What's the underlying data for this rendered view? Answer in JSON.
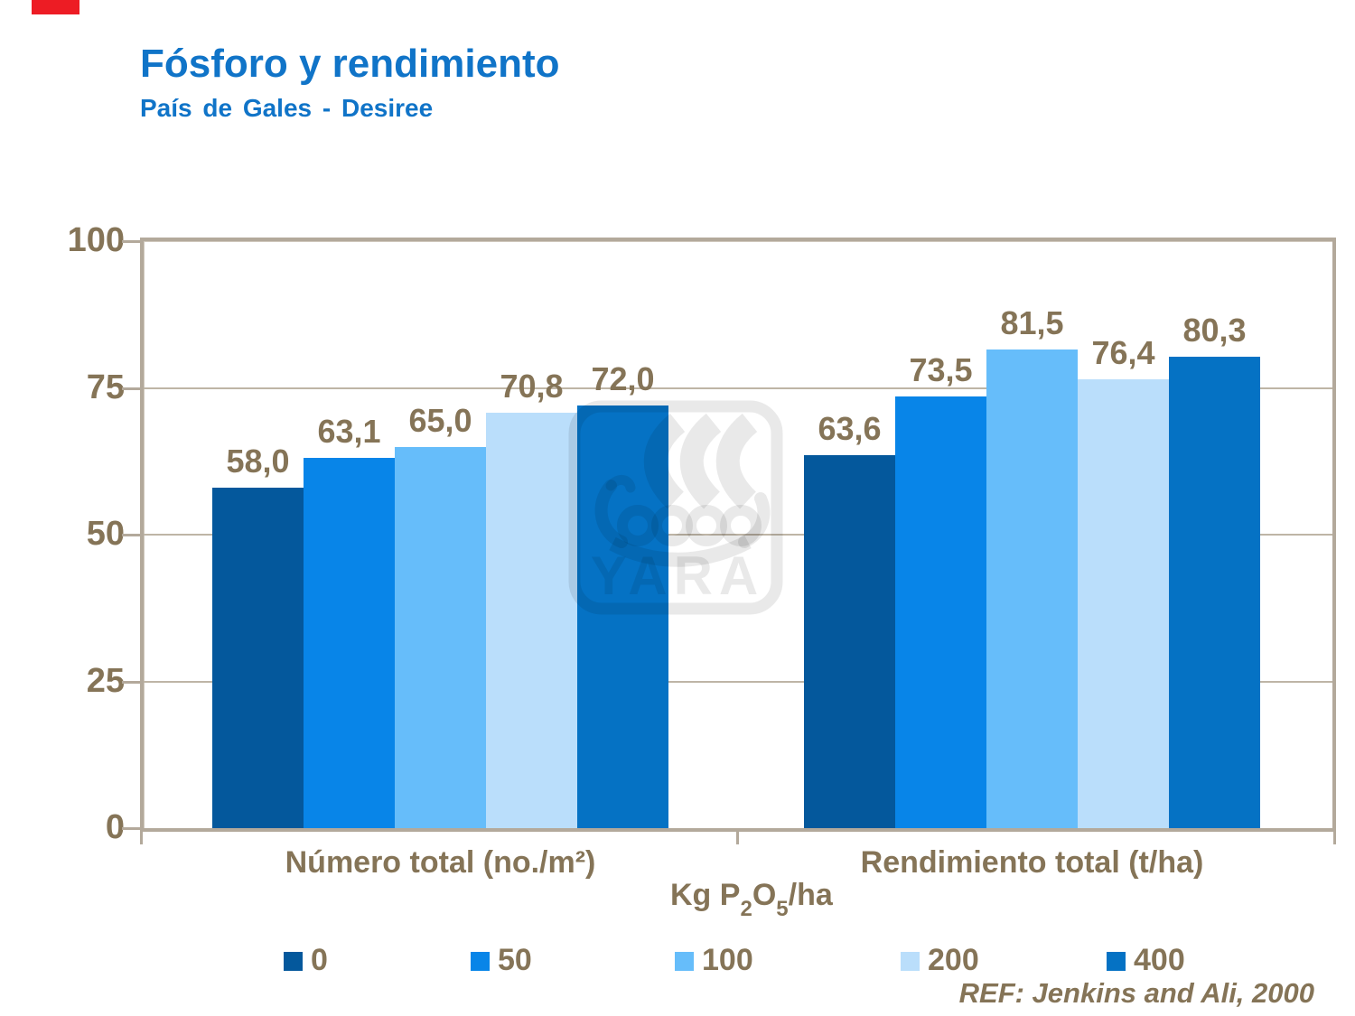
{
  "slide": {
    "title": "Fósforo y rendimiento",
    "subtitle": "País de Gales - Desiree",
    "reference": "REF: Jenkins and Ali, 2000",
    "watermark_text": "YARA",
    "unit_label": {
      "pre": "Kg P",
      "sub1": "2",
      "mid": "O",
      "sub2": "5",
      "post": "/ha"
    }
  },
  "colors": {
    "brand_red": "#ed1c24",
    "title_blue": "#1074c8",
    "text_brown": "#857457",
    "axis_tan": "#b3a99b",
    "grid_tan": "#beb5a6",
    "watermark_gray": "rgba(0,0,0,0.085)"
  },
  "chart_data": {
    "type": "bar",
    "title": "Fósforo y rendimiento",
    "subtitle": "País de Gales - Desiree",
    "categories": [
      "Número total (no./m²)",
      "Rendimiento total (t/ha)"
    ],
    "series": [
      {
        "name": "0",
        "color": "#04589c",
        "values": [
          58.0,
          63.6
        ],
        "labels": [
          "58,0",
          "63,6"
        ]
      },
      {
        "name": "50",
        "color": "#0885e8",
        "values": [
          63.1,
          73.5
        ],
        "labels": [
          "63,1",
          "73,5"
        ]
      },
      {
        "name": "100",
        "color": "#66bdfa",
        "values": [
          65.0,
          81.5
        ],
        "labels": [
          "65,0",
          "81,5"
        ]
      },
      {
        "name": "200",
        "color": "#badefb",
        "values": [
          70.8,
          76.4
        ],
        "labels": [
          "70,8",
          "76,4"
        ]
      },
      {
        "name": "400",
        "color": "#0572c4",
        "values": [
          72.0,
          80.3
        ],
        "labels": [
          "72,0",
          "80,3"
        ]
      }
    ],
    "xlabel": "Kg P2O5/ha",
    "ylabel": "",
    "ylim": [
      0,
      100
    ],
    "yticks": [
      0,
      25,
      50,
      75,
      100
    ],
    "grid": true,
    "legend_position": "bottom",
    "value_label_decimal_separator": ","
  }
}
